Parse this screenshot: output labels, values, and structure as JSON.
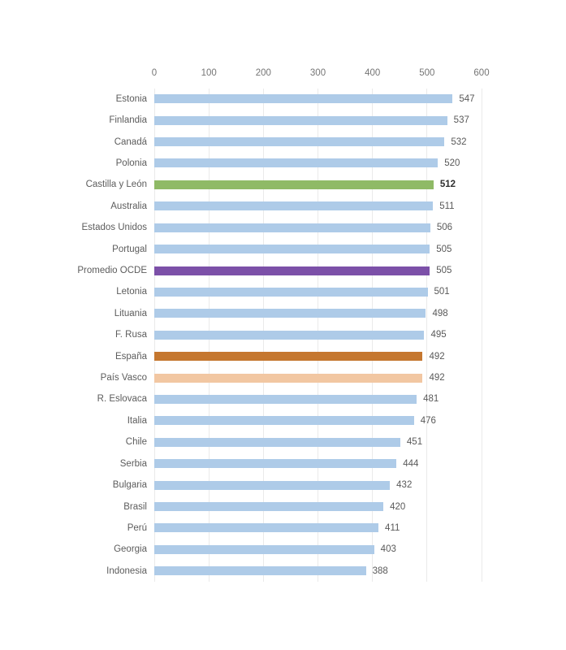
{
  "chart_data": {
    "type": "bar",
    "orientation": "horizontal",
    "title": "",
    "xlabel": "",
    "ylabel": "",
    "xlim": [
      0,
      600
    ],
    "x_ticks": [
      0,
      100,
      200,
      300,
      400,
      500,
      600
    ],
    "grid": true,
    "legend": false,
    "axis_position": "top",
    "colors": {
      "default": "#aecbe8",
      "green": "#8fba66",
      "purple": "#7c50a8",
      "dark_orange": "#c5772f",
      "light_orange": "#f2c7a2"
    },
    "items": [
      {
        "label": "Estonia",
        "value": 547,
        "color_key": "default",
        "value_bold": false
      },
      {
        "label": "Finlandia",
        "value": 537,
        "color_key": "default",
        "value_bold": false
      },
      {
        "label": "Canadá",
        "value": 532,
        "color_key": "default",
        "value_bold": false
      },
      {
        "label": "Polonia",
        "value": 520,
        "color_key": "default",
        "value_bold": false
      },
      {
        "label": "Castilla y León",
        "value": 512,
        "color_key": "green",
        "value_bold": true
      },
      {
        "label": "Australia",
        "value": 511,
        "color_key": "default",
        "value_bold": false
      },
      {
        "label": "Estados Unidos",
        "value": 506,
        "color_key": "default",
        "value_bold": false
      },
      {
        "label": "Portugal",
        "value": 505,
        "color_key": "default",
        "value_bold": false
      },
      {
        "label": "Promedio OCDE",
        "value": 505,
        "color_key": "purple",
        "value_bold": false
      },
      {
        "label": "Letonia",
        "value": 501,
        "color_key": "default",
        "value_bold": false
      },
      {
        "label": "Lituania",
        "value": 498,
        "color_key": "default",
        "value_bold": false
      },
      {
        "label": "F. Rusa",
        "value": 495,
        "color_key": "default",
        "value_bold": false
      },
      {
        "label": "España",
        "value": 492,
        "color_key": "dark_orange",
        "value_bold": false
      },
      {
        "label": "País Vasco",
        "value": 492,
        "color_key": "light_orange",
        "value_bold": false
      },
      {
        "label": "R. Eslovaca",
        "value": 481,
        "color_key": "default",
        "value_bold": false
      },
      {
        "label": "Italia",
        "value": 476,
        "color_key": "default",
        "value_bold": false
      },
      {
        "label": "Chile",
        "value": 451,
        "color_key": "default",
        "value_bold": false
      },
      {
        "label": "Serbia",
        "value": 444,
        "color_key": "default",
        "value_bold": false
      },
      {
        "label": "Bulgaria",
        "value": 432,
        "color_key": "default",
        "value_bold": false
      },
      {
        "label": "Brasil",
        "value": 420,
        "color_key": "default",
        "value_bold": false
      },
      {
        "label": "Perú",
        "value": 411,
        "color_key": "default",
        "value_bold": false
      },
      {
        "label": "Georgia",
        "value": 403,
        "color_key": "default",
        "value_bold": false
      },
      {
        "label": "Indonesia",
        "value": 388,
        "color_key": "default",
        "value_bold": false
      }
    ]
  }
}
